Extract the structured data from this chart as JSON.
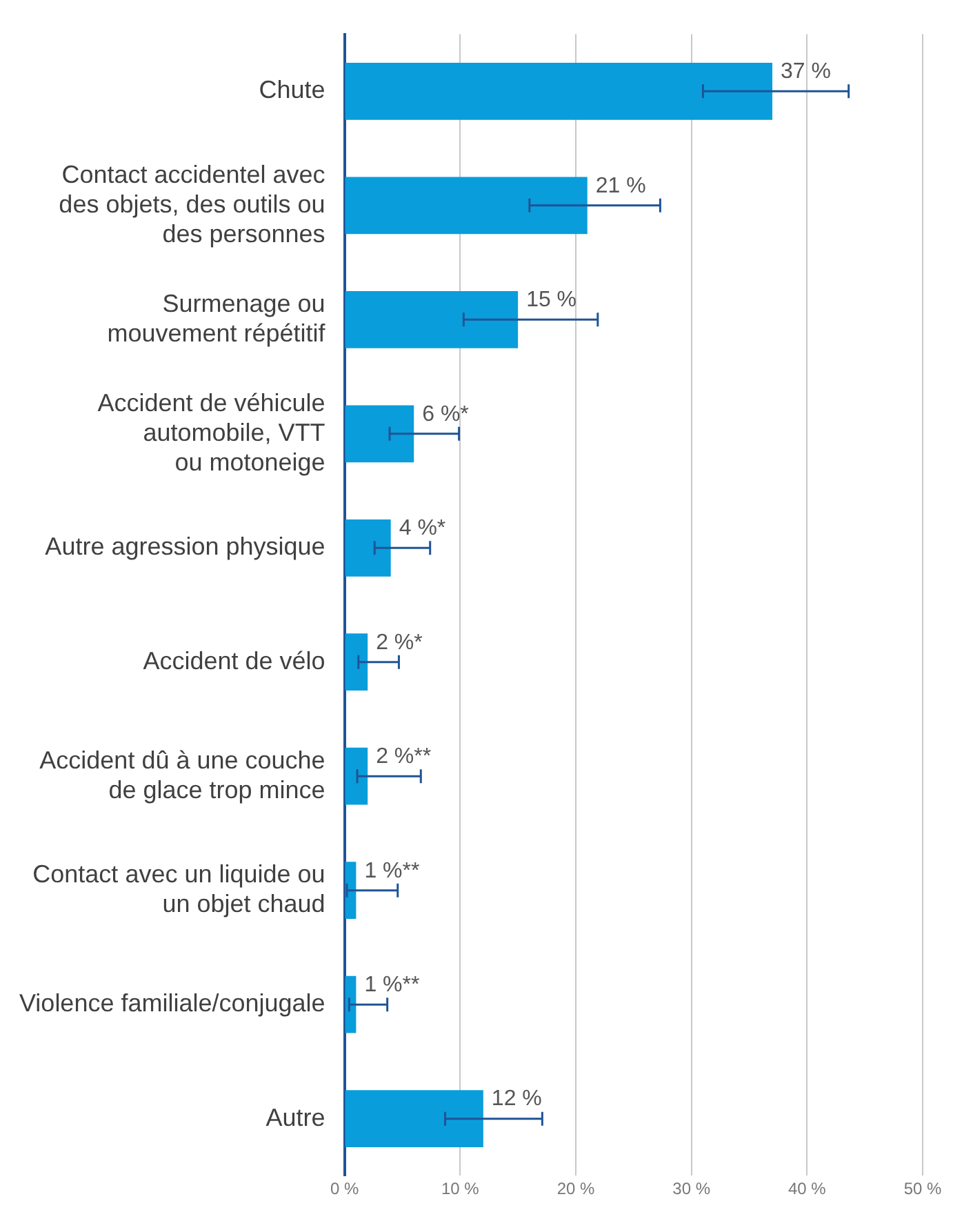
{
  "chart_data": {
    "type": "bar",
    "orientation": "horizontal",
    "categories": [
      "Chute",
      "Contact accidentel avec\ndes objets, des outils ou\ndes personnes",
      "Surmenage ou\nmouvement répétitif",
      "Accident de véhicule\nautomobile, VTT\nou motoneige",
      "Autre agression physique",
      "Accident de vélo",
      "Accident dû à une couche\nde glace trop mince",
      "Contact avec un liquide ou\nun objet chaud",
      "Violence familiale/conjugale",
      "Autre"
    ],
    "values": [
      37,
      21,
      15,
      6,
      4,
      2,
      2,
      1,
      1,
      12
    ],
    "value_labels": [
      "37 %",
      "21 %",
      "15 %",
      "6 %*",
      "4 %*",
      "2 %*",
      "2 %**",
      "1 %**",
      "1 %**",
      "12 %"
    ],
    "errors": [
      [
        31,
        43.6
      ],
      [
        16,
        27.3
      ],
      [
        10.3,
        21.9
      ],
      [
        3.9,
        9.9
      ],
      [
        2.6,
        7.4
      ],
      [
        1.2,
        4.7
      ],
      [
        1.1,
        6.6
      ],
      [
        0.2,
        4.6
      ],
      [
        0.4,
        3.7
      ],
      [
        8.7,
        17.1
      ]
    ],
    "color": "#0a9ddb",
    "xlim": [
      0,
      50
    ],
    "xticks": [
      {
        "value": 0,
        "label": "0 %"
      },
      {
        "value": 10,
        "label": "10 %"
      },
      {
        "value": 20,
        "label": "20 %"
      },
      {
        "value": 30,
        "label": "30 %"
      },
      {
        "value": 40,
        "label": "40 %"
      },
      {
        "value": 50,
        "label": "50 %"
      }
    ],
    "grid": "x",
    "legend": false
  }
}
